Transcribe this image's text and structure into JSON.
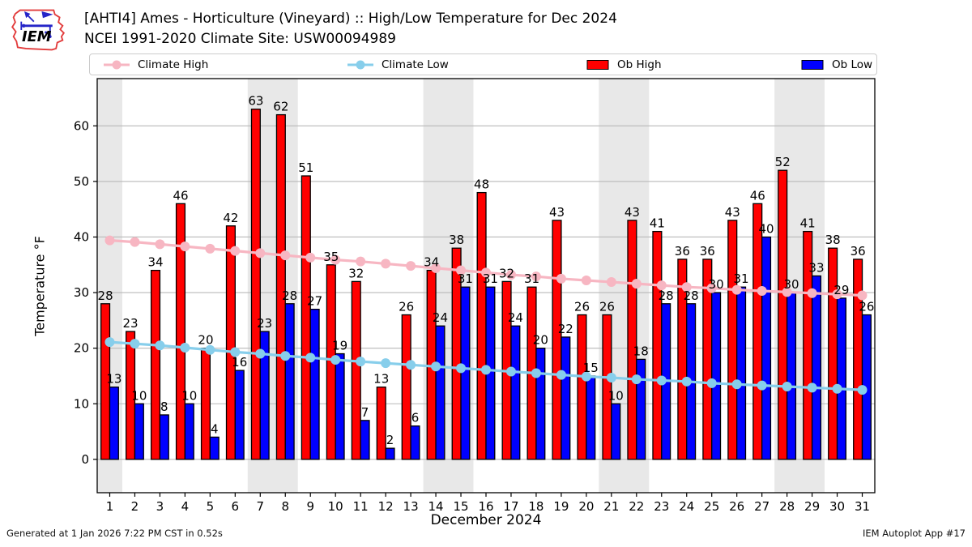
{
  "header": {
    "logo_text": "IEM",
    "title_line1": "[AHTI4] Ames - Horticulture (Vineyard) :: High/Low Temperature for Dec 2024",
    "title_line2": "NCEI 1991-2020 Climate Site: USW00094989"
  },
  "legend": {
    "items": [
      {
        "label": "Climate High",
        "type": "line",
        "color": "#f7b6c2"
      },
      {
        "label": "Climate Low",
        "type": "line",
        "color": "#87ceeb"
      },
      {
        "label": "Ob High",
        "type": "box",
        "color": "#ff0000"
      },
      {
        "label": "Ob Low",
        "type": "box",
        "color": "#0000ff"
      }
    ]
  },
  "chart_data": {
    "type": "bar",
    "title": "[AHTI4] Ames - Horticulture (Vineyard) :: High/Low Temperature for Dec 2024",
    "subtitle": "NCEI 1991-2020 Climate Site: USW00094989",
    "xlabel": "December 2024",
    "ylabel": "Temperature °F",
    "x": [
      1,
      2,
      3,
      4,
      5,
      6,
      7,
      8,
      9,
      10,
      11,
      12,
      13,
      14,
      15,
      16,
      17,
      18,
      19,
      20,
      21,
      22,
      23,
      24,
      25,
      26,
      27,
      28,
      29,
      30,
      31
    ],
    "series": [
      {
        "name": "Ob High",
        "render": "bar",
        "color": "#ff0000",
        "values": [
          28,
          23,
          34,
          46,
          20,
          42,
          63,
          62,
          51,
          35,
          32,
          13,
          26,
          34,
          38,
          48,
          32,
          31,
          43,
          26,
          26,
          43,
          41,
          36,
          36,
          43,
          46,
          52,
          41,
          38,
          36
        ]
      },
      {
        "name": "Ob Low",
        "render": "bar",
        "color": "#0000ff",
        "values": [
          13,
          10,
          8,
          10,
          4,
          16,
          23,
          28,
          27,
          19,
          7,
          2,
          6,
          24,
          31,
          31,
          24,
          20,
          22,
          15,
          10,
          18,
          28,
          28,
          30,
          31,
          40,
          30,
          33,
          29,
          26
        ]
      },
      {
        "name": "Climate High",
        "render": "line",
        "color": "#f7b6c2",
        "values": [
          39.4,
          39.1,
          38.7,
          38.3,
          37.9,
          37.5,
          37.1,
          36.7,
          36.3,
          35.9,
          35.6,
          35.2,
          34.8,
          34.4,
          34.0,
          33.6,
          33.2,
          32.9,
          32.5,
          32.2,
          31.9,
          31.6,
          31.3,
          31.0,
          30.8,
          30.5,
          30.3,
          30.1,
          29.9,
          29.7,
          29.5
        ]
      },
      {
        "name": "Climate Low",
        "render": "line",
        "color": "#87ceeb",
        "values": [
          21.1,
          20.8,
          20.5,
          20.1,
          19.7,
          19.3,
          19.0,
          18.6,
          18.3,
          17.9,
          17.6,
          17.3,
          17.0,
          16.7,
          16.4,
          16.1,
          15.8,
          15.5,
          15.2,
          14.9,
          14.7,
          14.4,
          14.2,
          14.0,
          13.7,
          13.5,
          13.3,
          13.1,
          12.9,
          12.7,
          12.5
        ]
      }
    ],
    "ylim": [
      -6,
      68.5
    ],
    "xlim": [
      0.5,
      31.5
    ],
    "yticks": [
      0,
      10,
      20,
      30,
      40,
      50,
      60
    ],
    "grid": "horizontal",
    "bar_labels": true,
    "legend_position": "top",
    "weekend_bands": [
      [
        0.5,
        1.5
      ],
      [
        6.5,
        8.5
      ],
      [
        13.5,
        15.5
      ],
      [
        20.5,
        22.5
      ],
      [
        27.5,
        29.5
      ]
    ],
    "band_color": "#e8e8e8"
  },
  "footer": {
    "left": "Generated at 1 Jan 2026 7:22 PM CST in 0.52s",
    "right": "IEM Autoplot App #17"
  }
}
